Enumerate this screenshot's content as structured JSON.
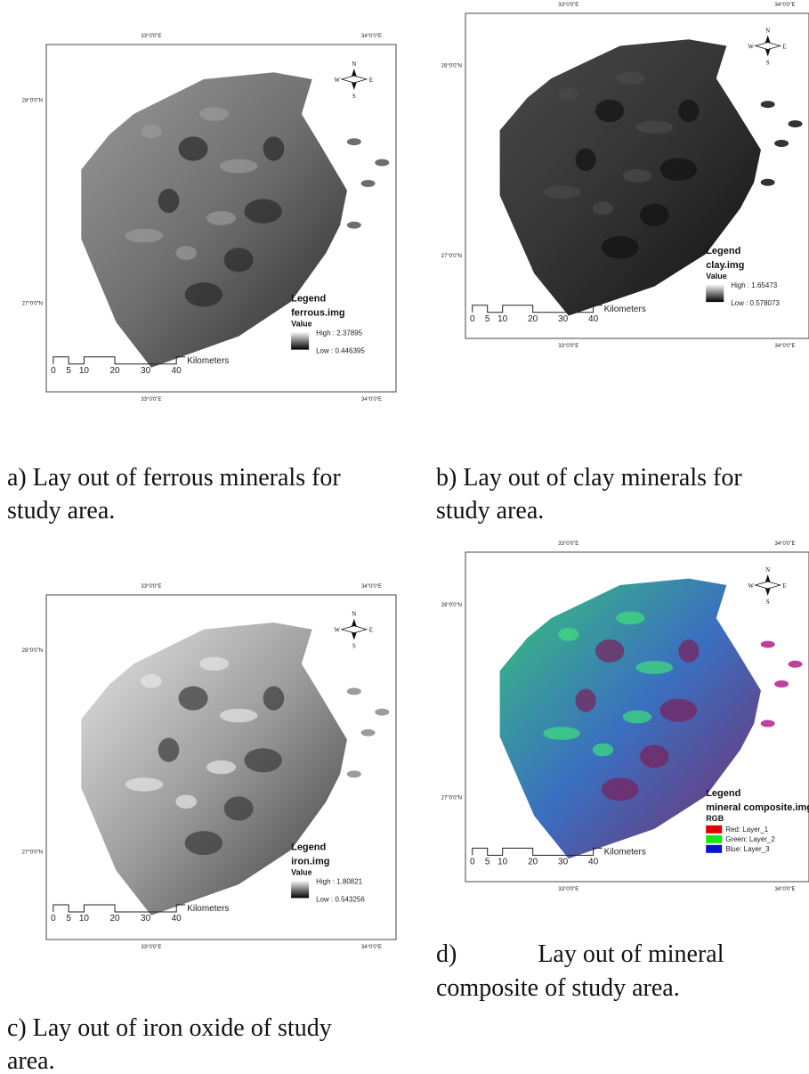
{
  "panels": [
    {
      "caption": [
        "a) Lay out of ferrous minerals for",
        "study area."
      ],
      "top_labels": [
        "33°0'0\"E",
        "34°0'0\"E"
      ],
      "bottom_labels": [
        "33°0'0\"E",
        "34°0'0\"E"
      ],
      "left_labels": [
        "28°0'0\"N",
        "27°0'0\"N"
      ],
      "compass": [
        "N",
        "S",
        "W",
        "E"
      ],
      "legend": {
        "title": "Legend",
        "file": "ferrous.img",
        "subtitle": "Value",
        "high": "High : 2.37895",
        "low": "Low : 0.446395"
      },
      "scale": {
        "ticks": [
          "0",
          "5",
          "10",
          "20",
          "30",
          "40"
        ],
        "unit": "Kilometers"
      },
      "colors": [
        "#9a9a9a",
        "#6e6e6e",
        "#2a2a2a"
      ]
    },
    {
      "caption": [
        "b) Lay out of clay minerals for",
        "study area."
      ],
      "top_labels": [
        "33°0'0\"E",
        "34°0'0\"E"
      ],
      "bottom_labels": [
        "33°0'0\"E",
        "34°0'0\"E"
      ],
      "left_labels": [
        "28°0'0\"N",
        "27°0'0\"N"
      ],
      "compass": [
        "N",
        "S",
        "W",
        "E"
      ],
      "legend": {
        "title": "Legend",
        "file": "clay.img",
        "subtitle": "Value",
        "high": "High : 1.65473",
        "low": "Low : 0.578073"
      },
      "scale": {
        "ticks": [
          "0",
          "5",
          "10",
          "20",
          "30",
          "40"
        ],
        "unit": "Kilometers"
      },
      "colors": [
        "#4a4a4a",
        "#333333",
        "#111111"
      ]
    },
    {
      "caption": [
        "c) Lay out of iron oxide of study",
        "area."
      ],
      "top_labels": [
        "33°0'0\"E",
        "34°0'0\"E"
      ],
      "bottom_labels": [
        "33°0'0\"E",
        "34°0'0\"E"
      ],
      "left_labels": [
        "28°0'0\"N",
        "27°0'0\"N"
      ],
      "compass": [
        "N",
        "S",
        "W",
        "E"
      ],
      "legend": {
        "title": "Legend",
        "file": "iron.img",
        "subtitle": "Value",
        "high": "High : 1.80821",
        "low": "Low : 0.543256"
      },
      "scale": {
        "ticks": [
          "0",
          "5",
          "10",
          "20",
          "30",
          "40"
        ],
        "unit": "Kilometers"
      },
      "colors": [
        "#e6e6e6",
        "#9c9c9c",
        "#3a3a3a"
      ]
    },
    {
      "caption": [
        "d)             Lay out of mineral",
        "composite of study area."
      ],
      "top_labels": [
        "33°0'0\"E",
        "34°0'0\"E"
      ],
      "bottom_labels": [
        "33°0'0\"E",
        "34°0'0\"E"
      ],
      "left_labels": [
        "28°0'0\"N",
        "27°0'0\"N"
      ],
      "compass": [
        "N",
        "S",
        "W",
        "E"
      ],
      "legend": {
        "title": "Legend",
        "file": "mineral composite.img",
        "subtitle": "RGB",
        "entries": [
          "Red:  Layer_1",
          "Green: Layer_2",
          "Blue: Layer_3"
        ],
        "entry_colors": [
          "#e00000",
          "#19e619",
          "#0a14c8"
        ]
      },
      "scale": {
        "ticks": [
          "0",
          "5",
          "10",
          "20",
          "30",
          "40"
        ],
        "unit": "Kilometers"
      },
      "colors": [
        "#38c47a",
        "#3a6fc0",
        "#7a2a6a"
      ]
    }
  ]
}
